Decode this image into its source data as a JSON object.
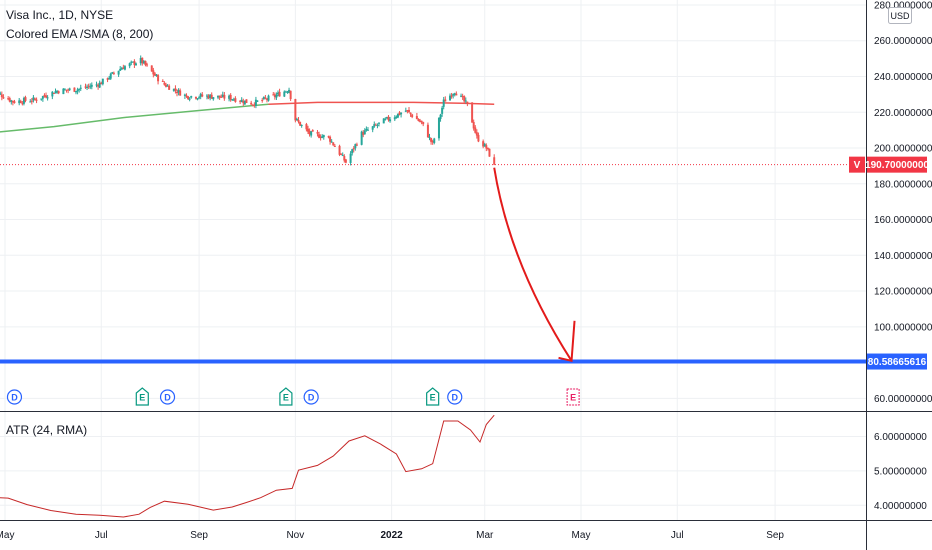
{
  "header": {
    "title": "Visa Inc., 1D, NYSE",
    "indicator": "Colored EMA /SMA (8, 200)",
    "currency": "USD"
  },
  "atr_panel": {
    "title": "ATR (24, RMA)"
  },
  "colors": {
    "up": "#26a69a",
    "down": "#ef5350",
    "sma_up": "#66bb6a",
    "sma_down": "#ef5350",
    "target_line": "#2962ff",
    "arrow": "#e31b1b",
    "atr": "#c62828",
    "grid": "#eef0f3",
    "dividend": "#2962ff",
    "earnings": "#089981",
    "earnings_future": "#e91e63",
    "price_tag": "#f23645"
  },
  "chart_data": [
    {
      "type": "candlestick",
      "x_ticks": [
        "May",
        "Jul",
        "Sep",
        "Nov",
        "2022",
        "Mar",
        "May",
        "Jul",
        "Sep"
      ],
      "y_ticks": [
        "280.00000000",
        "260.00000000",
        "240.00000000",
        "220.00000000",
        "200.00000000",
        "180.00000000",
        "160.00000000",
        "140.00000000",
        "120.00000000",
        "100.00000000",
        "60.00000000"
      ],
      "ylim": [
        55,
        282
      ],
      "close_path": [
        [
          "2021-04-22",
          233
        ],
        [
          "2021-05-06",
          226
        ],
        [
          "2021-05-20",
          227
        ],
        [
          "2021-06-03",
          232
        ],
        [
          "2021-06-17",
          233
        ],
        [
          "2021-06-30",
          236
        ],
        [
          "2021-07-14",
          245
        ],
        [
          "2021-07-26",
          249
        ],
        [
          "2021-08-09",
          236
        ],
        [
          "2021-08-24",
          229
        ],
        [
          "2021-09-07",
          229
        ],
        [
          "2021-09-21",
          228
        ],
        [
          "2021-10-05",
          225
        ],
        [
          "2021-10-19",
          229
        ],
        [
          "2021-10-28",
          233
        ],
        [
          "2021-11-01",
          216
        ],
        [
          "2021-11-10",
          208
        ],
        [
          "2021-11-22",
          206
        ],
        [
          "2021-12-03",
          192
        ],
        [
          "2021-12-13",
          208
        ],
        [
          "2021-12-27",
          215
        ],
        [
          "2022-01-10",
          221
        ],
        [
          "2022-01-20",
          214
        ],
        [
          "2022-01-27",
          202
        ],
        [
          "2022-02-03",
          226
        ],
        [
          "2022-02-10",
          232
        ],
        [
          "2022-02-18",
          224
        ],
        [
          "2022-02-24",
          206
        ],
        [
          "2022-03-02",
          200
        ],
        [
          "2022-03-07",
          190.7
        ]
      ],
      "sma": [
        [
          "2021-04-22",
          208.5
        ],
        [
          "2021-06-01",
          212
        ],
        [
          "2021-07-15",
          217
        ],
        [
          "2021-09-01",
          221
        ],
        [
          "2021-10-15",
          224.5
        ],
        [
          "2021-11-15",
          225.5
        ],
        [
          "2021-12-15",
          225.5
        ],
        [
          "2022-01-15",
          225.5
        ],
        [
          "2022-02-15",
          225
        ],
        [
          "2022-03-07",
          224.5
        ]
      ],
      "last_price": {
        "symbol": "V",
        "value": "190.70000000"
      },
      "target": {
        "value": "80.58665616"
      },
      "arrow": {
        "from": [
          "2022-03-07",
          189
        ],
        "to": [
          "2022-04-25",
          81
        ]
      },
      "events": [
        {
          "kind": "dividend",
          "label": "D",
          "date": "2021-05-07"
        },
        {
          "kind": "earnings",
          "label": "E",
          "date": "2021-07-27"
        },
        {
          "kind": "dividend",
          "label": "D",
          "date": "2021-08-12"
        },
        {
          "kind": "earnings",
          "label": "E",
          "date": "2021-10-26"
        },
        {
          "kind": "dividend",
          "label": "D",
          "date": "2021-11-11"
        },
        {
          "kind": "earnings",
          "label": "E",
          "date": "2022-01-27"
        },
        {
          "kind": "dividend",
          "label": "D",
          "date": "2022-02-10"
        },
        {
          "kind": "earnings_future",
          "label": "E",
          "date": "2022-04-26"
        }
      ]
    },
    {
      "type": "line",
      "name": "ATR (24, RMA)",
      "y_ticks": [
        "6.00000000",
        "5.00000000",
        "4.00000000"
      ],
      "ylim": [
        3.45,
        6.75
      ],
      "points": [
        [
          "2021-04-22",
          4.23
        ],
        [
          "2021-05-03",
          4.21
        ],
        [
          "2021-05-15",
          4.02
        ],
        [
          "2021-05-30",
          3.85
        ],
        [
          "2021-06-15",
          3.74
        ],
        [
          "2021-06-30",
          3.71
        ],
        [
          "2021-07-15",
          3.66
        ],
        [
          "2021-07-25",
          3.74
        ],
        [
          "2021-08-01",
          3.94
        ],
        [
          "2021-08-10",
          4.12
        ],
        [
          "2021-08-25",
          4.03
        ],
        [
          "2021-09-10",
          3.86
        ],
        [
          "2021-09-22",
          3.95
        ],
        [
          "2021-10-01",
          4.08
        ],
        [
          "2021-10-10",
          4.22
        ],
        [
          "2021-10-20",
          4.44
        ],
        [
          "2021-10-30",
          4.49
        ],
        [
          "2021-11-03",
          5.02
        ],
        [
          "2021-11-15",
          5.16
        ],
        [
          "2021-11-25",
          5.43
        ],
        [
          "2021-12-05",
          5.87
        ],
        [
          "2021-12-15",
          6.02
        ],
        [
          "2021-12-25",
          5.78
        ],
        [
          "2022-01-04",
          5.49
        ],
        [
          "2022-01-10",
          4.98
        ],
        [
          "2022-01-20",
          5.06
        ],
        [
          "2022-01-27",
          5.21
        ],
        [
          "2022-02-03",
          6.45
        ],
        [
          "2022-02-12",
          6.45
        ],
        [
          "2022-02-20",
          6.19
        ],
        [
          "2022-02-26",
          5.84
        ],
        [
          "2022-03-02",
          6.35
        ],
        [
          "2022-03-07",
          6.62
        ]
      ]
    }
  ]
}
